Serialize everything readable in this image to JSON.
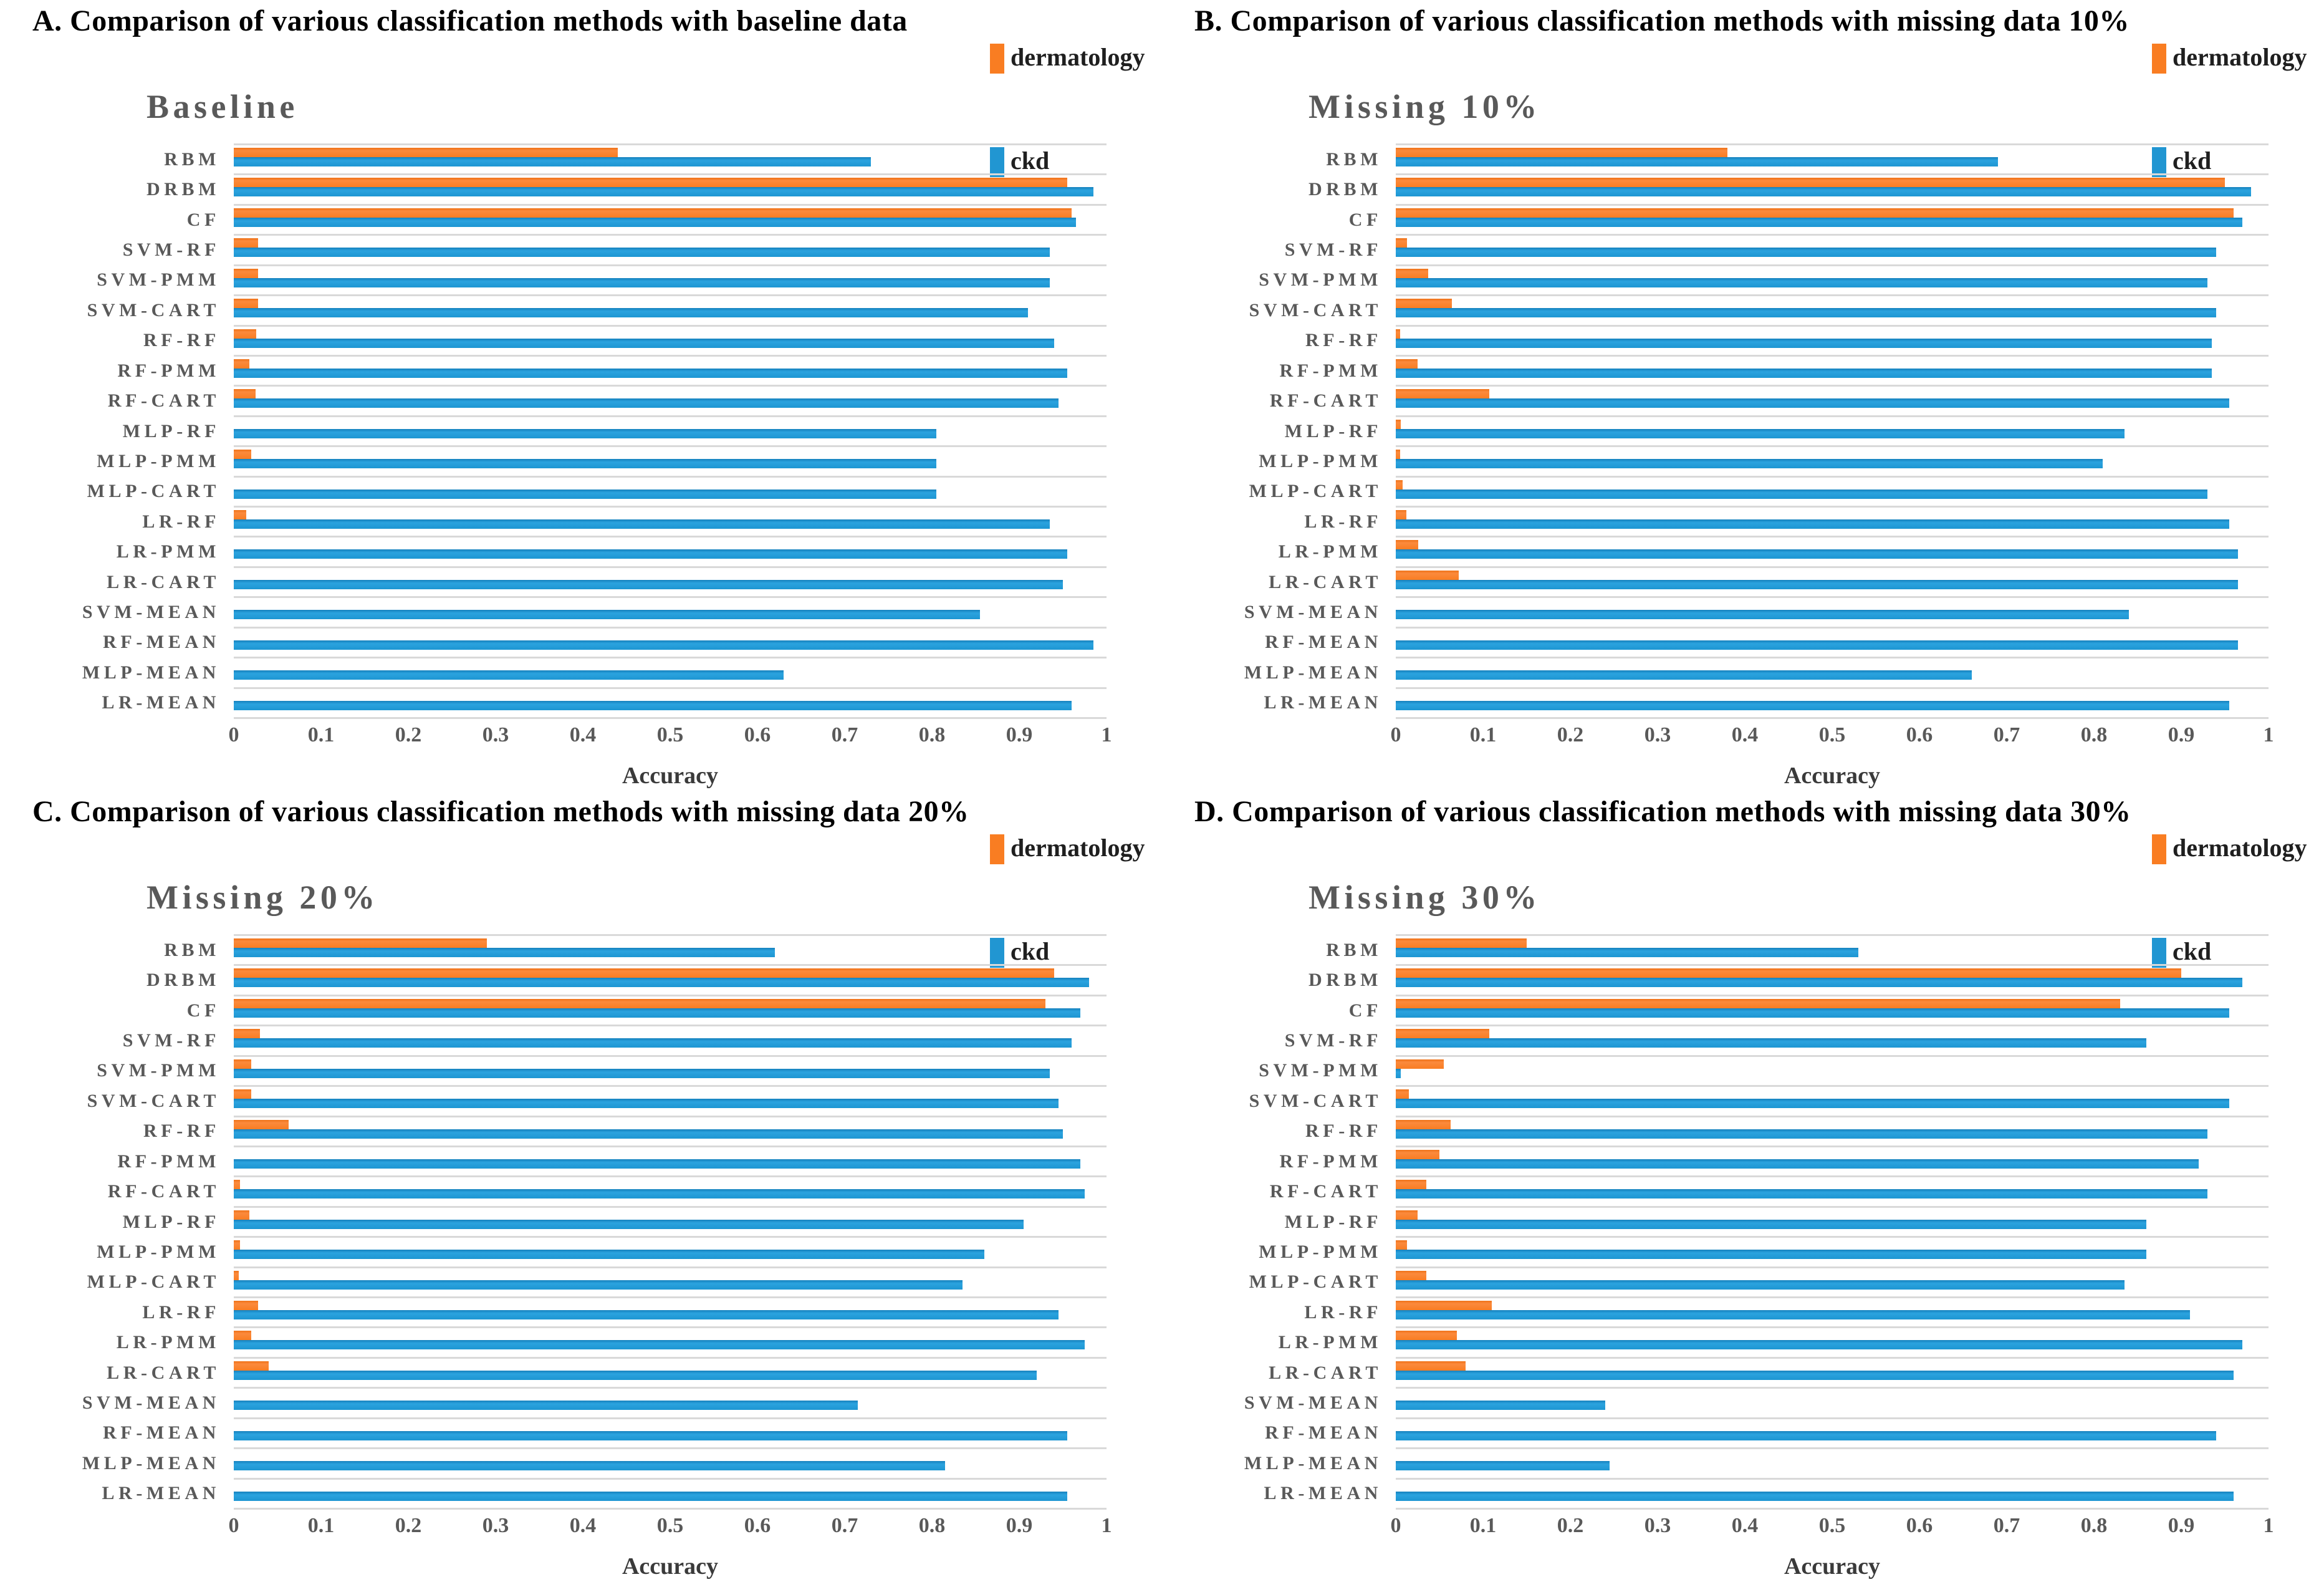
{
  "legend": {
    "dermatology": "dermatology",
    "ckd": "ckd"
  },
  "axis": {
    "label": "Accuracy",
    "ticks": [
      "0",
      "0.1",
      "0.2",
      "0.3",
      "0.4",
      "0.5",
      "0.6",
      "0.7",
      "0.8",
      "0.9",
      "1"
    ],
    "range": [
      0,
      1
    ]
  },
  "colors": {
    "dermatology": "#F97D22",
    "ckd": "#2196D2",
    "grid": "#D9D9D9",
    "label_gray": "#595959",
    "title_black": "#000000"
  },
  "categories": [
    "RBM",
    "DRBM",
    "CF",
    "SVM-RF",
    "SVM-PMM",
    "SVM-CART",
    "RF-RF",
    "RF-PMM",
    "RF-CART",
    "MLP-RF",
    "MLP-PMM",
    "MLP-CART",
    "LR-RF",
    "LR-PMM",
    "LR-CART",
    "SVM-MEAN",
    "RF-MEAN",
    "MLP-MEAN",
    "LR-MEAN"
  ],
  "chart_data": [
    {
      "type": "bar",
      "orientation": "horizontal",
      "title": "A. Comparison of various classification methods with baseline data",
      "subtitle": "Baseline",
      "xlabel": "Accuracy",
      "xlim": [
        0,
        1
      ],
      "legend_position": "top-right",
      "grid": "row-separators",
      "categories": [
        "RBM",
        "DRBM",
        "CF",
        "SVM-RF",
        "SVM-PMM",
        "SVM-CART",
        "RF-RF",
        "RF-PMM",
        "RF-CART",
        "MLP-RF",
        "MLP-PMM",
        "MLP-CART",
        "LR-RF",
        "LR-PMM",
        "LR-CART",
        "SVM-MEAN",
        "RF-MEAN",
        "MLP-MEAN",
        "LR-MEAN"
      ],
      "series": [
        {
          "name": "dermatology",
          "values": [
            0.44,
            0.955,
            0.96,
            0.028,
            0.028,
            0.028,
            0.026,
            0.018,
            0.025,
            0,
            0.02,
            0,
            0.014,
            0,
            0,
            0,
            0,
            0,
            0
          ]
        },
        {
          "name": "ckd",
          "values": [
            0.73,
            0.985,
            0.965,
            0.935,
            0.935,
            0.91,
            0.94,
            0.955,
            0.945,
            0.805,
            0.805,
            0.805,
            0.935,
            0.955,
            0.95,
            0.855,
            0.985,
            0.63,
            0.96
          ]
        }
      ]
    },
    {
      "type": "bar",
      "orientation": "horizontal",
      "title": "B. Comparison of various classification methods with missing data 10%",
      "subtitle": "Missing 10%",
      "xlabel": "Accuracy",
      "xlim": [
        0,
        1
      ],
      "legend_position": "top-right",
      "grid": "row-separators",
      "categories": [
        "RBM",
        "DRBM",
        "CF",
        "SVM-RF",
        "SVM-PMM",
        "SVM-CART",
        "RF-RF",
        "RF-PMM",
        "RF-CART",
        "MLP-RF",
        "MLP-PMM",
        "MLP-CART",
        "LR-RF",
        "LR-PMM",
        "LR-CART",
        "SVM-MEAN",
        "RF-MEAN",
        "MLP-MEAN",
        "LR-MEAN"
      ],
      "series": [
        {
          "name": "dermatology",
          "values": [
            0.38,
            0.95,
            0.96,
            0.013,
            0.037,
            0.064,
            0.005,
            0.025,
            0.107,
            0.006,
            0.005,
            0.008,
            0.012,
            0.026,
            0.072,
            0,
            0,
            0,
            0
          ]
        },
        {
          "name": "ckd",
          "values": [
            0.69,
            0.98,
            0.97,
            0.94,
            0.93,
            0.94,
            0.935,
            0.935,
            0.955,
            0.835,
            0.81,
            0.93,
            0.955,
            0.965,
            0.965,
            0.84,
            0.965,
            0.66,
            0.955
          ]
        }
      ]
    },
    {
      "type": "bar",
      "orientation": "horizontal",
      "title": "C. Comparison of various classification methods with missing data 20%",
      "subtitle": "Missing 20%",
      "xlabel": "Accuracy",
      "xlim": [
        0,
        1
      ],
      "legend_position": "top-right",
      "grid": "row-separators",
      "categories": [
        "RBM",
        "DRBM",
        "CF",
        "SVM-RF",
        "SVM-PMM",
        "SVM-CART",
        "RF-RF",
        "RF-PMM",
        "RF-CART",
        "MLP-RF",
        "MLP-PMM",
        "MLP-CART",
        "LR-RF",
        "LR-PMM",
        "LR-CART",
        "SVM-MEAN",
        "RF-MEAN",
        "MLP-MEAN",
        "LR-MEAN"
      ],
      "series": [
        {
          "name": "dermatology",
          "values": [
            0.29,
            0.94,
            0.93,
            0.03,
            0.02,
            0.02,
            0.063,
            0,
            0.007,
            0.018,
            0.007,
            0.006,
            0.028,
            0.02,
            0.04,
            0,
            0,
            0,
            0
          ]
        },
        {
          "name": "ckd",
          "values": [
            0.62,
            0.98,
            0.97,
            0.96,
            0.935,
            0.945,
            0.95,
            0.97,
            0.975,
            0.905,
            0.86,
            0.835,
            0.945,
            0.975,
            0.92,
            0.715,
            0.955,
            0.815,
            0.955
          ]
        }
      ]
    },
    {
      "type": "bar",
      "orientation": "horizontal",
      "title": "D. Comparison of various classification methods with missing data 30%",
      "subtitle": "Missing 30%",
      "xlabel": "Accuracy",
      "xlim": [
        0,
        1
      ],
      "legend_position": "top-right",
      "grid": "row-separators",
      "categories": [
        "RBM",
        "DRBM",
        "CF",
        "SVM-RF",
        "SVM-PMM",
        "SVM-CART",
        "RF-RF",
        "RF-PMM",
        "RF-CART",
        "MLP-RF",
        "MLP-PMM",
        "MLP-CART",
        "LR-RF",
        "LR-PMM",
        "LR-CART",
        "SVM-MEAN",
        "RF-MEAN",
        "MLP-MEAN",
        "LR-MEAN"
      ],
      "series": [
        {
          "name": "dermatology",
          "values": [
            0.15,
            0.9,
            0.83,
            0.107,
            0.055,
            0.015,
            0.063,
            0.05,
            0.035,
            0.025,
            0.013,
            0.035,
            0.11,
            0.07,
            0.08,
            0,
            0,
            0,
            0
          ]
        },
        {
          "name": "ckd",
          "values": [
            0.53,
            0.97,
            0.955,
            0.86,
            0.006,
            0.955,
            0.93,
            0.92,
            0.93,
            0.86,
            0.86,
            0.835,
            0.91,
            0.97,
            0.96,
            0.24,
            0.94,
            0.245,
            0.96
          ]
        }
      ]
    }
  ]
}
